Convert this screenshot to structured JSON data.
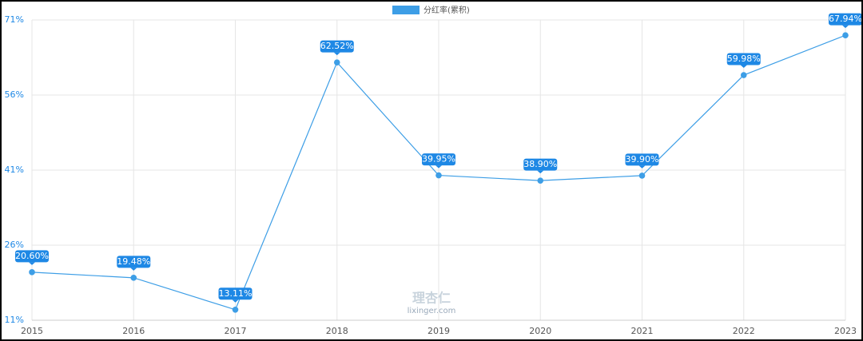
{
  "chart_data": {
    "type": "line",
    "categories": [
      "2015",
      "2016",
      "2017",
      "2018",
      "2019",
      "2020",
      "2021",
      "2022",
      "2023"
    ],
    "series": [
      {
        "name": "分红率(累积)",
        "color": "#3d9ee6",
        "values": [
          20.6,
          19.48,
          13.11,
          62.52,
          39.95,
          38.9,
          39.9,
          59.98,
          67.94
        ],
        "value_labels": [
          "20.60%",
          "19.48%",
          "13.11%",
          "62.52%",
          "39.95%",
          "38.90%",
          "39.90%",
          "59.98%",
          "67.94%"
        ]
      }
    ],
    "ylim": [
      11,
      71
    ],
    "yticks": [
      {
        "value": 11,
        "label": "11%"
      },
      {
        "value": 26,
        "label": "26%"
      },
      {
        "value": 41,
        "label": "41%"
      },
      {
        "value": 56,
        "label": "56%"
      },
      {
        "value": 71,
        "label": "71%"
      }
    ],
    "grid": true,
    "legend": "top",
    "watermark": [
      "理杏仁",
      "lixinger.com"
    ]
  }
}
